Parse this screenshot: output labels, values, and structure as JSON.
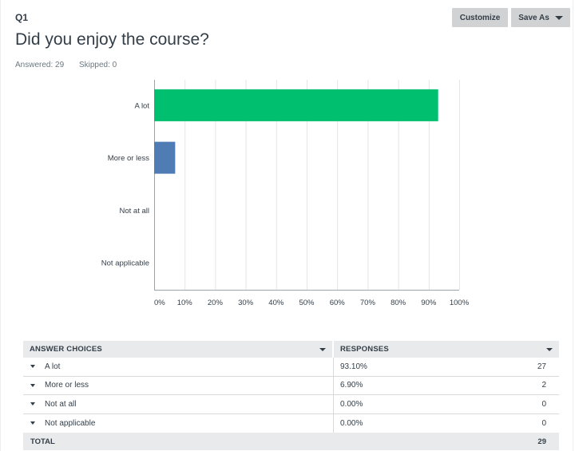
{
  "question": {
    "number": "Q1",
    "title": "Did you enjoy the course?",
    "answered_label": "Answered: 29",
    "skipped_label": "Skipped: 0"
  },
  "toolbar": {
    "customize_label": "Customize",
    "save_as_label": "Save As"
  },
  "colors": {
    "bar_primary": "#00bf6f",
    "bar_secondary": "#507cb6",
    "grid": "#e3e5e6",
    "axis": "#9da5aa"
  },
  "chart_data": {
    "type": "bar",
    "orientation": "horizontal",
    "categories": [
      "A lot",
      "More or less",
      "Not at all",
      "Not applicable"
    ],
    "values": [
      93.1,
      6.9,
      0.0,
      0.0
    ],
    "xlim": [
      0,
      100
    ],
    "xticks": [
      "0%",
      "10%",
      "20%",
      "30%",
      "40%",
      "50%",
      "60%",
      "70%",
      "80%",
      "90%",
      "100%"
    ],
    "grid": true,
    "legend": "none"
  },
  "table": {
    "headers": [
      "ANSWER CHOICES",
      "RESPONSES"
    ],
    "rows": [
      {
        "choice": "A lot",
        "percent": "93.10%",
        "count": "27"
      },
      {
        "choice": "More or less",
        "percent": "6.90%",
        "count": "2"
      },
      {
        "choice": "Not at all",
        "percent": "0.00%",
        "count": "0"
      },
      {
        "choice": "Not applicable",
        "percent": "0.00%",
        "count": "0"
      }
    ],
    "total_label": "TOTAL",
    "total_count": "29"
  }
}
